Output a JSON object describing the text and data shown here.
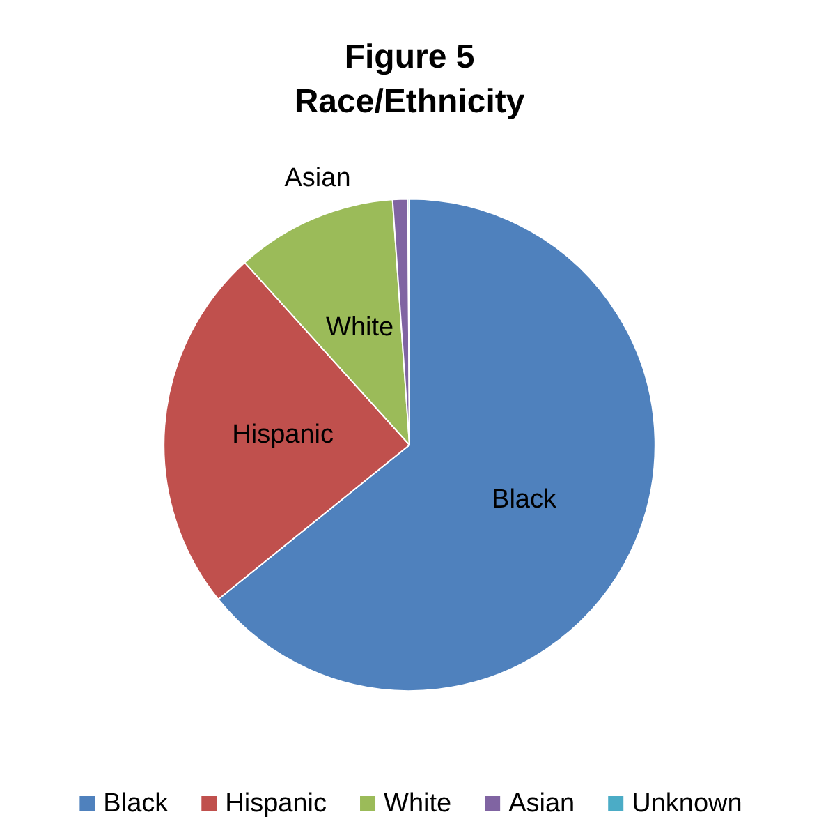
{
  "chart_data": {
    "type": "pie",
    "title": "Figure 5\nRace/Ethnicity",
    "categories": [
      "Black",
      "Hispanic",
      "White",
      "Asian",
      "Unknown"
    ],
    "values": [
      64.2,
      24.1,
      10.6,
      1.0,
      0.1
    ],
    "colors": [
      "#4f81bd",
      "#c0504d",
      "#9bbb59",
      "#8064a2",
      "#4bacc6"
    ],
    "legend": "bottom"
  }
}
